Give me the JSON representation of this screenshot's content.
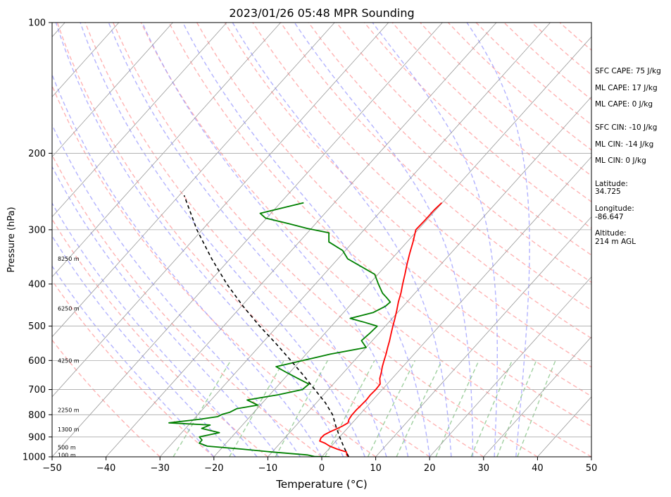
{
  "chart_data": {
    "type": "line",
    "title": "2023/01/26 05:48 MPR Sounding",
    "xlabel": "Temperature (°C)",
    "ylabel": "Pressure (hPa)",
    "xlim": [
      -50,
      50
    ],
    "ylim": [
      1000,
      100
    ],
    "y_scale": "log",
    "skew": "skew-T",
    "x_ticks": [
      "−50",
      "−40",
      "−30",
      "−20",
      "−10",
      "0",
      "10",
      "20",
      "30",
      "40",
      "50"
    ],
    "x_tick_values": [
      -50,
      -40,
      -30,
      -20,
      -10,
      0,
      10,
      20,
      30,
      40,
      50
    ],
    "y_ticks": [
      "1000",
      "900",
      "800",
      "700",
      "600",
      "500",
      "400",
      "300",
      "200",
      "100"
    ],
    "y_tick_values": [
      1000,
      900,
      800,
      700,
      600,
      500,
      400,
      300,
      200,
      100
    ],
    "grid": true,
    "colors": {
      "temperature": "#ff0000",
      "dewpoint": "#008000",
      "parcel": "#000000",
      "isotherm": "#999999",
      "dry_adiabat": "#ff9999",
      "moist_adiabat": "#9999ff",
      "mixing_ratio": "#80c080"
    },
    "series": [
      {
        "key": "temperature",
        "p": [
          1000,
          990,
          975,
          960,
          945,
          930,
          920,
          905,
          890,
          875,
          860,
          850,
          835,
          820,
          800,
          780,
          760,
          740,
          720,
          700,
          680,
          660,
          640,
          620,
          600,
          580,
          560,
          540,
          520,
          500,
          480,
          460,
          440,
          420,
          400,
          380,
          360,
          340,
          320,
          300,
          285,
          270,
          260
        ],
        "t": [
          5,
          4.3,
          3.8,
          1.6,
          -0.3,
          -1.7,
          -3,
          -3.3,
          -3.2,
          -2.6,
          -1.8,
          -1.3,
          -0.8,
          -1.2,
          -1.4,
          -1.4,
          -1.3,
          -1.2,
          -1.3,
          -1.2,
          -1.3,
          -2.3,
          -3.0,
          -3.8,
          -4.5,
          -5.2,
          -6.0,
          -6.8,
          -7.7,
          -8.6,
          -9.5,
          -10.5,
          -11.6,
          -12.6,
          -13.8,
          -15.0,
          -16.3,
          -17.6,
          -18.9,
          -20.4,
          -20.3,
          -20.3,
          -20.1
        ]
      },
      {
        "key": "dewpoint",
        "p": [
          1000,
          999,
          990,
          975,
          960,
          945,
          930,
          915,
          900,
          880,
          860,
          845,
          835,
          820,
          808,
          798,
          790,
          775,
          760,
          740,
          720,
          700,
          680,
          660,
          640,
          620,
          600,
          580,
          560,
          540,
          520,
          500,
          490,
          480,
          465,
          450,
          440,
          430,
          420,
          400,
          380,
          365,
          350,
          335,
          320,
          305,
          298,
          290,
          282,
          275,
          268,
          260
        ],
        "t": [
          1.5,
          -1.3,
          -3,
          -10,
          -16,
          -23,
          -25,
          -25,
          -26,
          -23,
          -27,
          -26,
          -34,
          -29,
          -26,
          -25.5,
          -24.5,
          -23.8,
          -20.5,
          -23.3,
          -18.5,
          -14.8,
          -14.5,
          -17.5,
          -20.5,
          -23.5,
          -19.5,
          -15.5,
          -10,
          -12,
          -11.7,
          -11.5,
          -14.5,
          -17.8,
          -14.5,
          -13.3,
          -13.1,
          -14.5,
          -16.0,
          -18.3,
          -20.6,
          -24.3,
          -28.2,
          -30.5,
          -34.5,
          -36.0,
          -40.7,
          -45.3,
          -50.2,
          -52,
          -49.1,
          -45.7
        ]
      },
      {
        "key": "parcel",
        "p": [
          1000,
          950,
          900,
          850,
          800,
          750,
          700,
          650,
          600,
          550,
          500,
          450,
          400,
          350,
          300,
          250
        ],
        "t": [
          5,
          2.5,
          0,
          -2.5,
          -5,
          -8.4,
          -12.5,
          -16.9,
          -21.8,
          -27.2,
          -33.3,
          -39.7,
          -46.4,
          -53.4,
          -61.0,
          -69.1
        ]
      }
    ]
  },
  "height_labels": [
    "8250 m",
    "6250 m",
    "4250 m",
    "2250 m",
    "1300 m",
    "500 m",
    "100 m"
  ],
  "height_label_pressures": [
    350,
    455,
    600,
    780,
    865,
    950,
    990
  ],
  "stats": {
    "sfc_cape": "SFC CAPE: 75 J/kg",
    "ml_cape_1": "ML CAPE: 17 J/kg",
    "ml_cape_2": "ML CAPE: 0 J/kg",
    "sfc_cin": "SFC CIN: -10 J/kg",
    "ml_cin_1": "ML CIN: -14 J/kg",
    "ml_cin_2": "ML CIN: 0 J/kg",
    "latitude_label": "Latitude:",
    "latitude_value": "34.725",
    "longitude_label": "Longitude:",
    "longitude_value": "-86.647",
    "altitude_label": "Altitude:",
    "altitude_value": "214 m AGL"
  }
}
